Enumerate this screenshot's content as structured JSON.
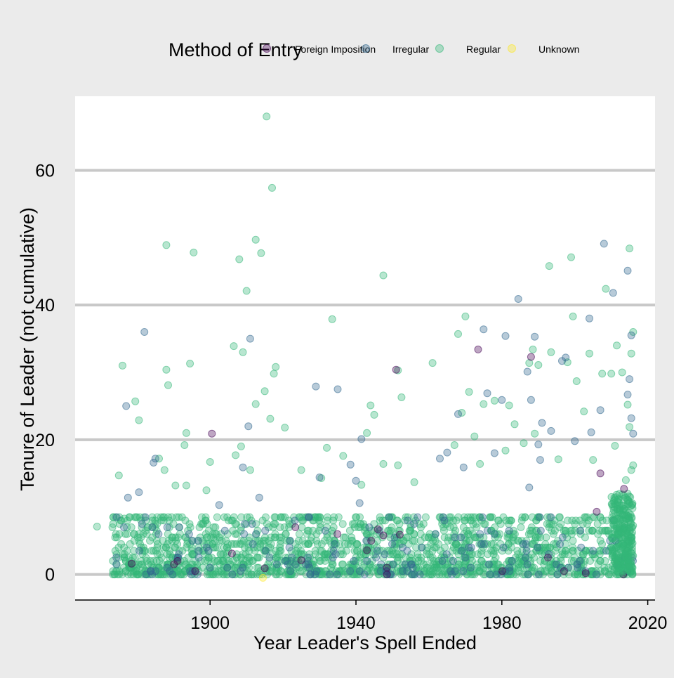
{
  "chart_data": {
    "type": "scatter",
    "title": "",
    "xlabel": "Year Leader's Spell Ended",
    "ylabel": "Tenure of Leader (not cumulative)",
    "xlim": [
      1863,
      2022
    ],
    "ylim": [
      -3.8,
      71
    ],
    "x_ticks": [
      1900,
      1940,
      1980,
      2020
    ],
    "y_ticks": [
      0,
      20,
      40,
      60
    ],
    "grid": "horizontal-major",
    "legend": {
      "title": "Method of Entry",
      "position": "top",
      "entries": [
        {
          "label": "Foreign Imposition",
          "color": "#440154"
        },
        {
          "label": "Irregular",
          "color": "#31688e"
        },
        {
          "label": "Regular",
          "color": "#35b779"
        },
        {
          "label": "Unknown",
          "color": "#fde725"
        }
      ]
    },
    "point_opacity": 0.35,
    "series": [
      {
        "name": "Regular",
        "color": "#35b779",
        "points": [
          [
            1915.5,
            68.0
          ],
          [
            1917.0,
            57.4
          ],
          [
            1912.5,
            49.7
          ],
          [
            1914.0,
            47.7
          ],
          [
            1888.0,
            48.9
          ],
          [
            1895.5,
            47.8
          ],
          [
            1908.0,
            46.8
          ],
          [
            1947.5,
            44.4
          ],
          [
            1910.0,
            42.1
          ],
          [
            1909.0,
            33.0
          ],
          [
            1906.5,
            33.9
          ],
          [
            1876.0,
            31.0
          ],
          [
            1888.0,
            30.4
          ],
          [
            1894.5,
            31.3
          ],
          [
            1918.0,
            30.8
          ],
          [
            1917.5,
            29.8
          ],
          [
            1888.5,
            28.1
          ],
          [
            1915.0,
            27.2
          ],
          [
            1879.5,
            25.7
          ],
          [
            1912.5,
            25.3
          ],
          [
            1916.5,
            23.1
          ],
          [
            1880.5,
            22.9
          ],
          [
            1920.5,
            21.8
          ],
          [
            1893.5,
            21.0
          ],
          [
            1893.0,
            19.2
          ],
          [
            1908.5,
            19.0
          ],
          [
            1886.0,
            17.2
          ],
          [
            1907.0,
            17.7
          ],
          [
            1900.0,
            16.7
          ],
          [
            1911.0,
            15.5
          ],
          [
            1887.5,
            15.5
          ],
          [
            1875.0,
            14.7
          ],
          [
            1890.5,
            13.2
          ],
          [
            1893.5,
            13.2
          ],
          [
            1899.0,
            12.5
          ],
          [
            1876.5,
            8.3
          ],
          [
            1869.0,
            7.1
          ],
          [
            1933.5,
            37.9
          ],
          [
            1951.5,
            30.3
          ],
          [
            1961.0,
            31.4
          ],
          [
            1952.5,
            26.3
          ],
          [
            1944.0,
            25.1
          ],
          [
            1945.0,
            23.7
          ],
          [
            1943.0,
            21.0
          ],
          [
            1932.0,
            18.8
          ],
          [
            1936.5,
            17.6
          ],
          [
            1947.5,
            16.4
          ],
          [
            1951.5,
            16.2
          ],
          [
            1930.5,
            14.3
          ],
          [
            1941.5,
            13.3
          ],
          [
            1925.0,
            15.5
          ],
          [
            1956.0,
            13.7
          ],
          [
            1970.0,
            38.3
          ],
          [
            1968.0,
            35.7
          ],
          [
            1971.0,
            27.1
          ],
          [
            1969.0,
            24.0
          ],
          [
            1975.0,
            25.3
          ],
          [
            1982.0,
            25.1
          ],
          [
            1983.5,
            22.3
          ],
          [
            1978.0,
            25.8
          ],
          [
            1972.5,
            20.5
          ],
          [
            1967.0,
            19.2
          ],
          [
            1981.0,
            18.4
          ],
          [
            1974.0,
            16.4
          ],
          [
            1987.5,
            31.4
          ],
          [
            1988.5,
            33.4
          ],
          [
            1993.5,
            33.0
          ],
          [
            1990.0,
            31.1
          ],
          [
            1993.0,
            45.8
          ],
          [
            1999.0,
            47.1
          ],
          [
            1999.5,
            38.3
          ],
          [
            1998.0,
            31.5
          ],
          [
            2004.0,
            32.8
          ],
          [
            2008.5,
            42.4
          ],
          [
            2011.5,
            34.0
          ],
          [
            2015.0,
            48.4
          ],
          [
            2015.5,
            32.8
          ],
          [
            2013.0,
            30.0
          ],
          [
            2007.5,
            29.8
          ],
          [
            2010.0,
            29.8
          ],
          [
            2000.5,
            28.7
          ],
          [
            2002.5,
            24.2
          ],
          [
            2014.5,
            25.2
          ],
          [
            2015.0,
            21.9
          ],
          [
            2011.0,
            19.1
          ],
          [
            2016.0,
            36.0
          ],
          [
            1986.0,
            19.5
          ],
          [
            1989.0,
            20.9
          ],
          [
            1995.5,
            17.1
          ],
          [
            2005.0,
            17.0
          ],
          [
            2016.0,
            16.2
          ],
          [
            2015.5,
            15.5
          ],
          [
            2014.0,
            14.0
          ]
        ]
      },
      {
        "name": "Irregular",
        "color": "#31688e",
        "points": [
          [
            1882.0,
            36.0
          ],
          [
            1911.0,
            35.0
          ],
          [
            1877.0,
            25.0
          ],
          [
            1910.5,
            22.0
          ],
          [
            1885.0,
            17.2
          ],
          [
            1884.5,
            16.6
          ],
          [
            1877.5,
            11.4
          ],
          [
            1880.5,
            12.2
          ],
          [
            1913.5,
            11.4
          ],
          [
            1902.5,
            10.3
          ],
          [
            1909.0,
            15.9
          ],
          [
            1929.0,
            27.9
          ],
          [
            1935.0,
            27.5
          ],
          [
            1941.5,
            20.1
          ],
          [
            1938.5,
            16.3
          ],
          [
            1930.0,
            14.4
          ],
          [
            1940.0,
            13.9
          ],
          [
            1941.0,
            10.6
          ],
          [
            1963.0,
            17.2
          ],
          [
            1965.0,
            18.1
          ],
          [
            1968.0,
            23.8
          ],
          [
            1969.5,
            15.9
          ],
          [
            1975.0,
            36.4
          ],
          [
            1976.0,
            26.9
          ],
          [
            1980.0,
            25.9
          ],
          [
            1981.0,
            35.4
          ],
          [
            1984.5,
            40.9
          ],
          [
            1987.0,
            30.1
          ],
          [
            1989.0,
            35.3
          ],
          [
            1988.0,
            25.9
          ],
          [
            1991.0,
            22.5
          ],
          [
            1993.5,
            21.3
          ],
          [
            1996.5,
            31.7
          ],
          [
            1997.5,
            32.2
          ],
          [
            2004.0,
            38.0
          ],
          [
            2007.0,
            24.4
          ],
          [
            2008.0,
            49.1
          ],
          [
            2010.5,
            41.8
          ],
          [
            2014.5,
            45.1
          ],
          [
            2015.5,
            35.5
          ],
          [
            2015.0,
            29.0
          ],
          [
            2014.5,
            26.7
          ],
          [
            2015.5,
            23.2
          ],
          [
            2016.0,
            20.9
          ],
          [
            2004.5,
            21.1
          ],
          [
            2000.0,
            19.8
          ],
          [
            1990.0,
            19.3
          ],
          [
            1978.0,
            18.0
          ],
          [
            1987.5,
            12.9
          ],
          [
            1990.5,
            17.0
          ]
        ]
      },
      {
        "name": "Foreign Imposition",
        "color": "#440154",
        "points": [
          [
            1900.5,
            20.9
          ],
          [
            1951.0,
            30.4
          ],
          [
            1973.5,
            33.4
          ],
          [
            1988.0,
            32.3
          ],
          [
            2007.0,
            15.0
          ],
          [
            2013.5,
            12.7
          ],
          [
            1946.0,
            6.7
          ],
          [
            1947.5,
            5.8
          ],
          [
            1906.0,
            3.1
          ],
          [
            1943.0,
            3.6
          ],
          [
            1952.0,
            5.9
          ],
          [
            1925.0,
            2.1
          ],
          [
            1948.5,
            1.0
          ],
          [
            1948.5,
            0.0
          ],
          [
            1878.5,
            1.6
          ],
          [
            2003.0,
            0.2
          ],
          [
            2006.0,
            9.3
          ],
          [
            1915.0,
            0.9
          ]
        ]
      },
      {
        "name": "Unknown",
        "color": "#fde725",
        "points": [
          [
            1914.5,
            -0.5
          ]
        ]
      }
    ],
    "dense_band": {
      "description": "hundreds of overlapping low-tenure points",
      "x_range": [
        1873,
        2016
      ],
      "y_range": [
        0,
        8.5
      ],
      "counts": {
        "Regular": 1600,
        "Irregular": 180,
        "Foreign Imposition": 10
      }
    }
  }
}
